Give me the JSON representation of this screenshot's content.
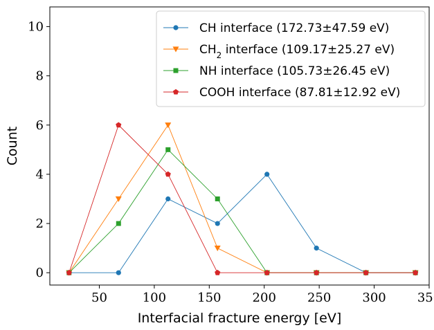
{
  "chart_data": {
    "type": "line",
    "xlabel": "Interfacial fracture energy [eV]",
    "ylabel": "Count",
    "xlim": [
      5,
      350
    ],
    "ylim": [
      -0.5,
      10.8
    ],
    "xticks": [
      50,
      100,
      150,
      200,
      250,
      300,
      350
    ],
    "yticks": [
      0,
      2,
      4,
      6,
      8,
      10
    ],
    "grid": false,
    "legend_position": "top-right",
    "x": [
      22.5,
      67.5,
      112.5,
      157.5,
      202.5,
      247.5,
      292.5,
      337.5
    ],
    "series": [
      {
        "name_prefix": "CH",
        "name_sub": "",
        "name_suffix": " interface (172.73±47.59 eV)",
        "color": "#1f77b4",
        "marker": "circle",
        "values": [
          0,
          0,
          3,
          2,
          4,
          1,
          0,
          0
        ]
      },
      {
        "name_prefix": "CH",
        "name_sub": "2",
        "name_suffix": " interface (109.17±25.27 eV)",
        "color": "#ff7f0e",
        "marker": "triangle-down",
        "values": [
          0,
          3,
          6,
          1,
          0,
          0,
          0,
          0
        ]
      },
      {
        "name_prefix": "NH",
        "name_sub": "",
        "name_suffix": " interface (105.73±26.45 eV)",
        "color": "#2ca02c",
        "marker": "square",
        "values": [
          0,
          2,
          5,
          3,
          0,
          0,
          0,
          0
        ]
      },
      {
        "name_prefix": "COOH",
        "name_sub": "",
        "name_suffix": " interface (87.81±12.92 eV)",
        "color": "#d62728",
        "marker": "pentagon",
        "values": [
          0,
          6,
          4,
          0,
          0,
          0,
          0,
          0
        ]
      }
    ]
  }
}
